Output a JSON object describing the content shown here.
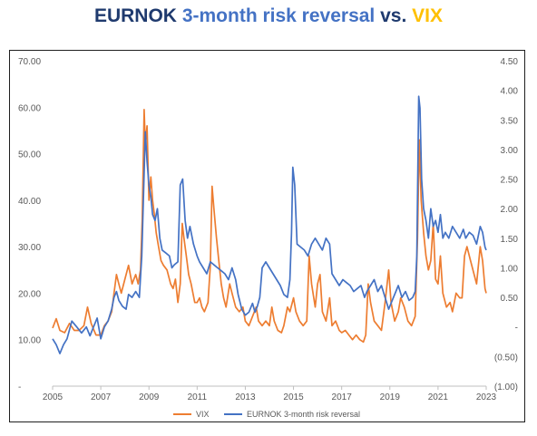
{
  "title": {
    "part1": "EURNOK",
    "part2": "3-month risk reversal",
    "part3": "vs.",
    "part4": "VIX",
    "colors": {
      "navy": "#1f3a6e",
      "blue": "#4472c4",
      "gold": "#ffc000"
    }
  },
  "chart_data": {
    "type": "line",
    "title": "EURNOK 3-month risk reversal vs. VIX",
    "x_range": [
      2005.0,
      2023.0
    ],
    "x_ticks": [
      "2005",
      "2007",
      "2009",
      "2011",
      "2013",
      "2015",
      "2017",
      "2019",
      "2021",
      "2023"
    ],
    "x_tick_values": [
      2005,
      2007,
      2009,
      2011,
      2013,
      2015,
      2017,
      2019,
      2021,
      2023
    ],
    "y_left": {
      "range": [
        0,
        70
      ],
      "tick_values": [
        0,
        10,
        20,
        30,
        40,
        50,
        60,
        70
      ],
      "tick_labels": [
        "-",
        "10.00",
        "20.00",
        "30.00",
        "40.00",
        "50.00",
        "60.00",
        "70.00"
      ]
    },
    "y_right": {
      "range": [
        -1.0,
        4.5
      ],
      "tick_values": [
        -1.0,
        -0.5,
        0,
        0.5,
        1.0,
        1.5,
        2.0,
        2.5,
        3.0,
        3.5,
        4.0,
        4.5
      ],
      "tick_labels": [
        "(1.00)",
        "(0.50)",
        "-",
        "0.50",
        "1.00",
        "1.50",
        "2.00",
        "2.50",
        "3.00",
        "3.50",
        "4.00",
        "4.50"
      ]
    },
    "grid": false,
    "legend_position": "bottom-center",
    "series": [
      {
        "name": "VIX",
        "axis": "left",
        "color": "#ed7d31",
        "points": [
          [
            2005.0,
            12.5
          ],
          [
            2005.15,
            14.5
          ],
          [
            2005.3,
            12.0
          ],
          [
            2005.5,
            11.5
          ],
          [
            2005.7,
            13.5
          ],
          [
            2005.9,
            12.0
          ],
          [
            2006.1,
            12.0
          ],
          [
            2006.3,
            13.0
          ],
          [
            2006.45,
            17.0
          ],
          [
            2006.6,
            13.5
          ],
          [
            2006.8,
            11.0
          ],
          [
            2007.0,
            11.0
          ],
          [
            2007.15,
            13.0
          ],
          [
            2007.3,
            14.0
          ],
          [
            2007.45,
            16.0
          ],
          [
            2007.55,
            20.0
          ],
          [
            2007.65,
            24.0
          ],
          [
            2007.75,
            22.0
          ],
          [
            2007.85,
            20.0
          ],
          [
            2008.0,
            23.0
          ],
          [
            2008.15,
            26.0
          ],
          [
            2008.3,
            22.0
          ],
          [
            2008.45,
            24.0
          ],
          [
            2008.55,
            22.0
          ],
          [
            2008.65,
            25.0
          ],
          [
            2008.72,
            36.0
          ],
          [
            2008.8,
            59.5
          ],
          [
            2008.85,
            52.0
          ],
          [
            2008.92,
            56.0
          ],
          [
            2009.0,
            40.0
          ],
          [
            2009.08,
            45.0
          ],
          [
            2009.15,
            40.0
          ],
          [
            2009.22,
            37.0
          ],
          [
            2009.3,
            33.0
          ],
          [
            2009.4,
            30.0
          ],
          [
            2009.5,
            27.0
          ],
          [
            2009.6,
            26.0
          ],
          [
            2009.75,
            25.0
          ],
          [
            2009.9,
            22.0
          ],
          [
            2010.0,
            21.0
          ],
          [
            2010.1,
            23.0
          ],
          [
            2010.2,
            18.0
          ],
          [
            2010.3,
            22.0
          ],
          [
            2010.38,
            35.0
          ],
          [
            2010.45,
            32.0
          ],
          [
            2010.55,
            28.0
          ],
          [
            2010.65,
            24.0
          ],
          [
            2010.75,
            22.0
          ],
          [
            2010.9,
            18.0
          ],
          [
            2011.0,
            18.0
          ],
          [
            2011.1,
            19.0
          ],
          [
            2011.2,
            17.0
          ],
          [
            2011.3,
            16.0
          ],
          [
            2011.45,
            18.0
          ],
          [
            2011.55,
            26.0
          ],
          [
            2011.62,
            43.0
          ],
          [
            2011.7,
            38.0
          ],
          [
            2011.8,
            32.0
          ],
          [
            2011.9,
            27.0
          ],
          [
            2012.0,
            22.0
          ],
          [
            2012.1,
            19.0
          ],
          [
            2012.2,
            17.0
          ],
          [
            2012.35,
            22.0
          ],
          [
            2012.45,
            20.0
          ],
          [
            2012.6,
            17.0
          ],
          [
            2012.75,
            16.0
          ],
          [
            2012.9,
            17.0
          ],
          [
            2013.0,
            14.0
          ],
          [
            2013.15,
            13.0
          ],
          [
            2013.3,
            15.0
          ],
          [
            2013.45,
            17.0
          ],
          [
            2013.55,
            14.0
          ],
          [
            2013.7,
            13.0
          ],
          [
            2013.85,
            14.0
          ],
          [
            2014.0,
            13.0
          ],
          [
            2014.1,
            17.0
          ],
          [
            2014.2,
            14.0
          ],
          [
            2014.35,
            12.0
          ],
          [
            2014.5,
            11.5
          ],
          [
            2014.6,
            13.0
          ],
          [
            2014.75,
            17.0
          ],
          [
            2014.85,
            16.0
          ],
          [
            2015.0,
            19.0
          ],
          [
            2015.1,
            16.0
          ],
          [
            2015.25,
            14.0
          ],
          [
            2015.4,
            13.0
          ],
          [
            2015.55,
            14.0
          ],
          [
            2015.65,
            28.0
          ],
          [
            2015.75,
            22.0
          ],
          [
            2015.9,
            17.0
          ],
          [
            2016.0,
            22.0
          ],
          [
            2016.1,
            24.0
          ],
          [
            2016.2,
            16.0
          ],
          [
            2016.35,
            14.0
          ],
          [
            2016.5,
            19.0
          ],
          [
            2016.6,
            13.0
          ],
          [
            2016.75,
            14.0
          ],
          [
            2016.9,
            12.0
          ],
          [
            2017.0,
            11.5
          ],
          [
            2017.15,
            12.0
          ],
          [
            2017.3,
            11.0
          ],
          [
            2017.45,
            10.0
          ],
          [
            2017.6,
            11.0
          ],
          [
            2017.75,
            10.0
          ],
          [
            2017.9,
            9.5
          ],
          [
            2018.0,
            11.0
          ],
          [
            2018.1,
            22.0
          ],
          [
            2018.2,
            18.0
          ],
          [
            2018.35,
            14.0
          ],
          [
            2018.5,
            13.0
          ],
          [
            2018.65,
            12.0
          ],
          [
            2018.8,
            18.0
          ],
          [
            2018.95,
            25.0
          ],
          [
            2019.05,
            18.0
          ],
          [
            2019.2,
            14.0
          ],
          [
            2019.35,
            16.0
          ],
          [
            2019.45,
            19.0
          ],
          [
            2019.6,
            17.0
          ],
          [
            2019.75,
            14.0
          ],
          [
            2019.9,
            13.0
          ],
          [
            2020.05,
            15.0
          ],
          [
            2020.15,
            32.0
          ],
          [
            2020.22,
            53.0
          ],
          [
            2020.3,
            40.0
          ],
          [
            2020.4,
            33.0
          ],
          [
            2020.5,
            28.0
          ],
          [
            2020.6,
            25.0
          ],
          [
            2020.7,
            27.0
          ],
          [
            2020.8,
            35.0
          ],
          [
            2020.9,
            23.0
          ],
          [
            2021.0,
            22.0
          ],
          [
            2021.1,
            28.0
          ],
          [
            2021.2,
            20.0
          ],
          [
            2021.35,
            17.0
          ],
          [
            2021.5,
            18.0
          ],
          [
            2021.6,
            16.0
          ],
          [
            2021.75,
            20.0
          ],
          [
            2021.9,
            19.0
          ],
          [
            2022.0,
            19.0
          ],
          [
            2022.1,
            28.0
          ],
          [
            2022.2,
            30.0
          ],
          [
            2022.35,
            27.0
          ],
          [
            2022.5,
            24.0
          ],
          [
            2022.6,
            22.0
          ],
          [
            2022.75,
            30.0
          ],
          [
            2022.85,
            27.0
          ],
          [
            2022.95,
            21.0
          ],
          [
            2023.0,
            20.0
          ]
        ]
      },
      {
        "name": "EURNOK 3-month risk reversal",
        "axis": "right",
        "color": "#4472c4",
        "points": [
          [
            2005.0,
            -0.2
          ],
          [
            2005.15,
            -0.3
          ],
          [
            2005.3,
            -0.45
          ],
          [
            2005.45,
            -0.3
          ],
          [
            2005.6,
            -0.2
          ],
          [
            2005.8,
            0.1
          ],
          [
            2006.0,
            0.0
          ],
          [
            2006.2,
            -0.1
          ],
          [
            2006.4,
            0.0
          ],
          [
            2006.55,
            -0.15
          ],
          [
            2006.7,
            0.0
          ],
          [
            2006.85,
            0.15
          ],
          [
            2007.0,
            -0.2
          ],
          [
            2007.15,
            0.0
          ],
          [
            2007.3,
            0.1
          ],
          [
            2007.45,
            0.3
          ],
          [
            2007.55,
            0.5
          ],
          [
            2007.65,
            0.6
          ],
          [
            2007.75,
            0.45
          ],
          [
            2007.9,
            0.35
          ],
          [
            2008.05,
            0.3
          ],
          [
            2008.15,
            0.55
          ],
          [
            2008.3,
            0.5
          ],
          [
            2008.45,
            0.6
          ],
          [
            2008.6,
            0.5
          ],
          [
            2008.7,
            1.2
          ],
          [
            2008.8,
            2.6
          ],
          [
            2008.85,
            3.3
          ],
          [
            2008.92,
            2.8
          ],
          [
            2009.0,
            2.4
          ],
          [
            2009.08,
            2.2
          ],
          [
            2009.15,
            1.9
          ],
          [
            2009.25,
            1.8
          ],
          [
            2009.35,
            2.0
          ],
          [
            2009.45,
            1.5
          ],
          [
            2009.55,
            1.3
          ],
          [
            2009.7,
            1.25
          ],
          [
            2009.85,
            1.2
          ],
          [
            2009.95,
            1.0
          ],
          [
            2010.05,
            1.05
          ],
          [
            2010.2,
            1.1
          ],
          [
            2010.3,
            2.4
          ],
          [
            2010.4,
            2.5
          ],
          [
            2010.5,
            1.8
          ],
          [
            2010.6,
            1.5
          ],
          [
            2010.7,
            1.7
          ],
          [
            2010.85,
            1.4
          ],
          [
            2011.0,
            1.2
          ],
          [
            2011.1,
            1.1
          ],
          [
            2011.25,
            1.0
          ],
          [
            2011.4,
            0.9
          ],
          [
            2011.55,
            1.1
          ],
          [
            2011.7,
            1.05
          ],
          [
            2011.85,
            1.0
          ],
          [
            2012.0,
            0.95
          ],
          [
            2012.15,
            0.9
          ],
          [
            2012.3,
            0.8
          ],
          [
            2012.45,
            1.0
          ],
          [
            2012.6,
            0.8
          ],
          [
            2012.7,
            0.55
          ],
          [
            2012.85,
            0.3
          ],
          [
            2013.0,
            0.2
          ],
          [
            2013.15,
            0.25
          ],
          [
            2013.3,
            0.4
          ],
          [
            2013.4,
            0.25
          ],
          [
            2013.5,
            0.35
          ],
          [
            2013.6,
            0.5
          ],
          [
            2013.7,
            1.0
          ],
          [
            2013.85,
            1.1
          ],
          [
            2014.0,
            1.0
          ],
          [
            2014.15,
            0.9
          ],
          [
            2014.3,
            0.8
          ],
          [
            2014.45,
            0.7
          ],
          [
            2014.6,
            0.55
          ],
          [
            2014.75,
            0.5
          ],
          [
            2014.85,
            0.8
          ],
          [
            2014.92,
            1.6
          ],
          [
            2014.97,
            2.7
          ],
          [
            2015.05,
            2.4
          ],
          [
            2015.15,
            1.4
          ],
          [
            2015.3,
            1.35
          ],
          [
            2015.45,
            1.3
          ],
          [
            2015.6,
            1.2
          ],
          [
            2015.75,
            1.4
          ],
          [
            2015.9,
            1.5
          ],
          [
            2016.05,
            1.4
          ],
          [
            2016.2,
            1.3
          ],
          [
            2016.35,
            1.5
          ],
          [
            2016.5,
            1.4
          ],
          [
            2016.6,
            0.9
          ],
          [
            2016.75,
            0.8
          ],
          [
            2016.9,
            0.7
          ],
          [
            2017.05,
            0.8
          ],
          [
            2017.2,
            0.75
          ],
          [
            2017.35,
            0.7
          ],
          [
            2017.5,
            0.6
          ],
          [
            2017.65,
            0.65
          ],
          [
            2017.8,
            0.7
          ],
          [
            2017.95,
            0.5
          ],
          [
            2018.05,
            0.6
          ],
          [
            2018.2,
            0.7
          ],
          [
            2018.35,
            0.8
          ],
          [
            2018.5,
            0.6
          ],
          [
            2018.65,
            0.7
          ],
          [
            2018.8,
            0.5
          ],
          [
            2018.95,
            0.3
          ],
          [
            2019.05,
            0.4
          ],
          [
            2019.2,
            0.55
          ],
          [
            2019.35,
            0.7
          ],
          [
            2019.5,
            0.5
          ],
          [
            2019.65,
            0.6
          ],
          [
            2019.8,
            0.45
          ],
          [
            2019.95,
            0.5
          ],
          [
            2020.05,
            0.6
          ],
          [
            2020.12,
            1.2
          ],
          [
            2020.2,
            3.9
          ],
          [
            2020.25,
            3.7
          ],
          [
            2020.32,
            2.5
          ],
          [
            2020.4,
            2.0
          ],
          [
            2020.5,
            1.8
          ],
          [
            2020.6,
            1.5
          ],
          [
            2020.7,
            2.0
          ],
          [
            2020.8,
            1.7
          ],
          [
            2020.9,
            1.8
          ],
          [
            2021.0,
            1.6
          ],
          [
            2021.1,
            1.9
          ],
          [
            2021.2,
            1.5
          ],
          [
            2021.3,
            1.6
          ],
          [
            2021.45,
            1.5
          ],
          [
            2021.6,
            1.7
          ],
          [
            2021.75,
            1.6
          ],
          [
            2021.9,
            1.5
          ],
          [
            2022.05,
            1.65
          ],
          [
            2022.15,
            1.5
          ],
          [
            2022.3,
            1.6
          ],
          [
            2022.45,
            1.55
          ],
          [
            2022.6,
            1.4
          ],
          [
            2022.75,
            1.7
          ],
          [
            2022.85,
            1.6
          ],
          [
            2022.95,
            1.35
          ],
          [
            2023.0,
            1.3
          ]
        ]
      }
    ]
  }
}
